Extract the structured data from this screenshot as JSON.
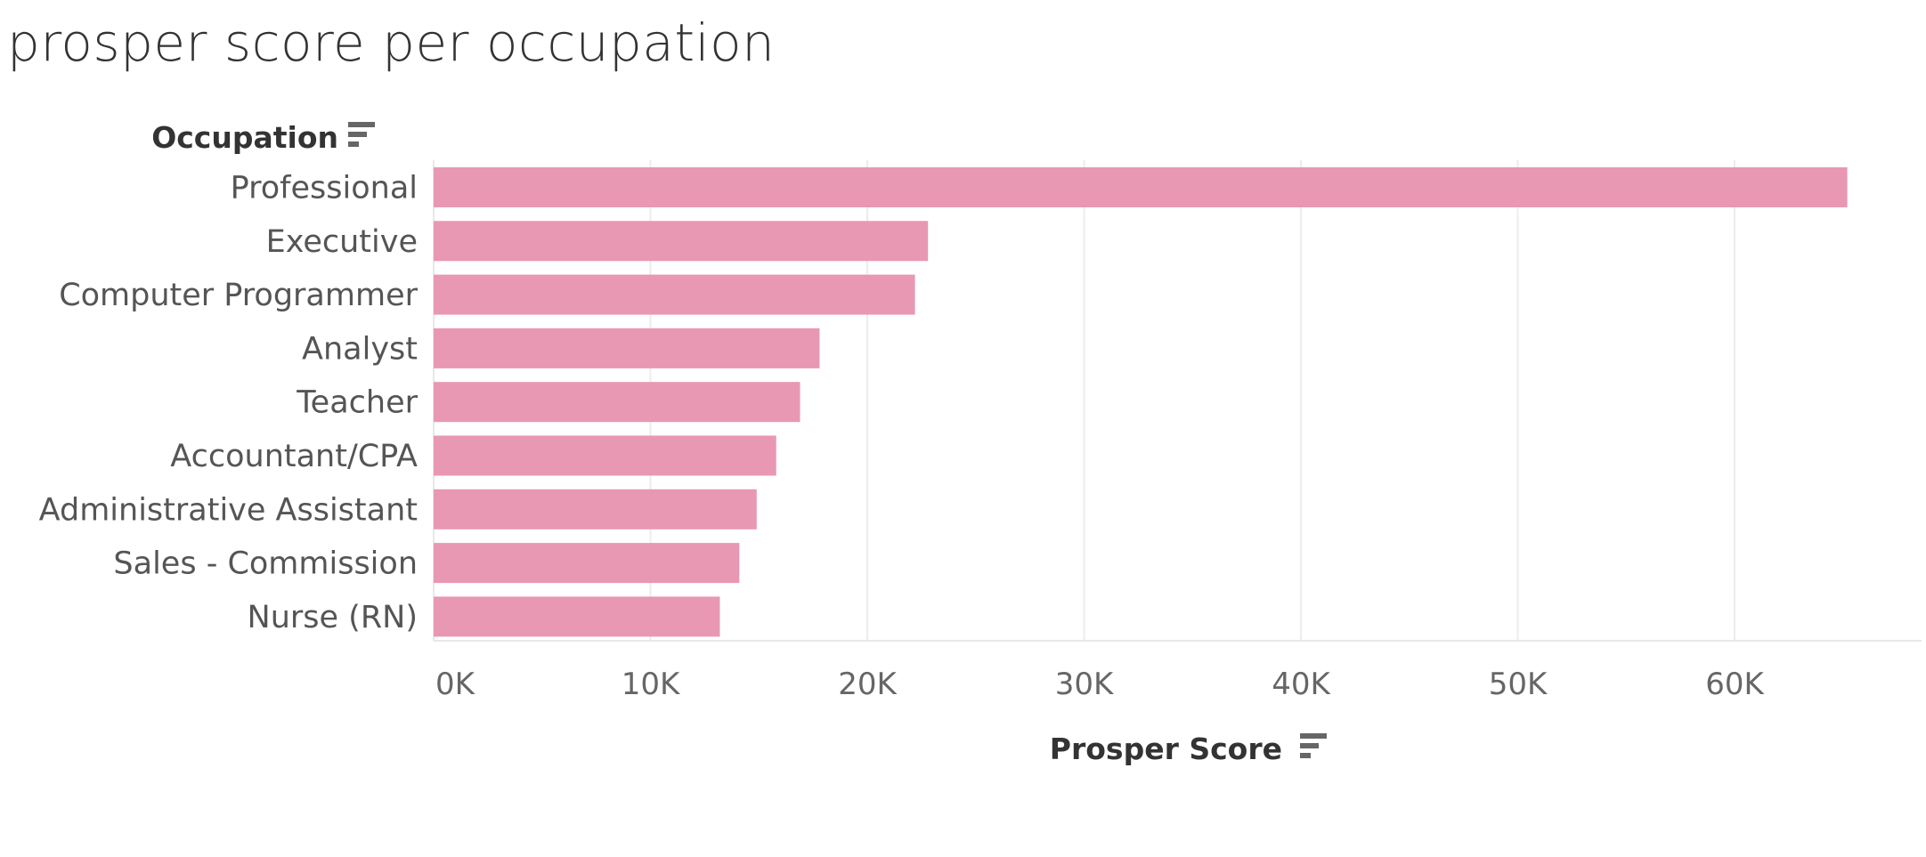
{
  "colors": {
    "bar": "#e898b2",
    "grid": "#ececec",
    "axis": "#e8e8e8",
    "sort_icon": "#666666"
  },
  "chart_data": {
    "type": "bar",
    "orientation": "horizontal",
    "title": "prosper score per occupation",
    "ylabel": "Occupation",
    "xlabel": "Prosper Score",
    "categories": [
      "Professional",
      "Executive",
      "Computer Programmer",
      "Analyst",
      "Teacher",
      "Accountant/CPA",
      "Administrative Assistant",
      "Sales - Commission",
      "Nurse (RN)"
    ],
    "values": [
      65200,
      22800,
      22200,
      17800,
      16900,
      15800,
      14900,
      14100,
      13200
    ],
    "xlim": [
      0,
      68000
    ],
    "ticks": [
      0,
      10000,
      20000,
      30000,
      40000,
      50000,
      60000
    ],
    "tick_labels": [
      "0K",
      "10K",
      "20K",
      "30K",
      "40K",
      "50K",
      "60K"
    ],
    "grid": true
  }
}
